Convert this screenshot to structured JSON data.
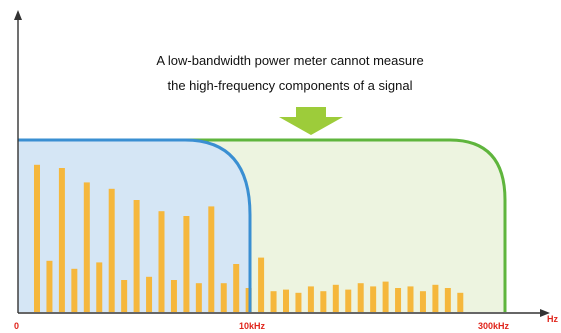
{
  "caption": {
    "line1": "A low-bandwidth power meter cannot measure",
    "line2": "the high-frequency components of a signal"
  },
  "axis": {
    "origin_label": "0",
    "marker_10k": "10kHz",
    "marker_300k": "300kHz",
    "unit": "Hz"
  },
  "colors": {
    "low_bandwidth_curve": "#3a8fd2",
    "low_bandwidth_fill": "#d5e6f5",
    "high_bandwidth_curve": "#5fb53d",
    "high_bandwidth_fill": "#edf4e0",
    "bars": "#f5b73c",
    "arrow": "#9dcc3a",
    "axis_labels": "#e0241b",
    "axes": "#333333"
  },
  "icons": {
    "down_arrow": "down-arrow-icon",
    "x_axis_arrow": "right-arrowhead-icon",
    "y_axis_arrow": "up-arrowhead-icon"
  },
  "spectrum_bars": [
    0.92,
    0.32,
    0.9,
    0.27,
    0.81,
    0.31,
    0.77,
    0.2,
    0.7,
    0.22,
    0.63,
    0.2,
    0.6,
    0.18,
    0.66,
    0.18,
    0.3,
    0.15,
    0.34,
    0.13,
    0.14,
    0.12,
    0.16,
    0.13,
    0.17,
    0.14,
    0.18,
    0.16,
    0.19,
    0.15,
    0.16,
    0.13,
    0.17,
    0.15,
    0.12
  ]
}
